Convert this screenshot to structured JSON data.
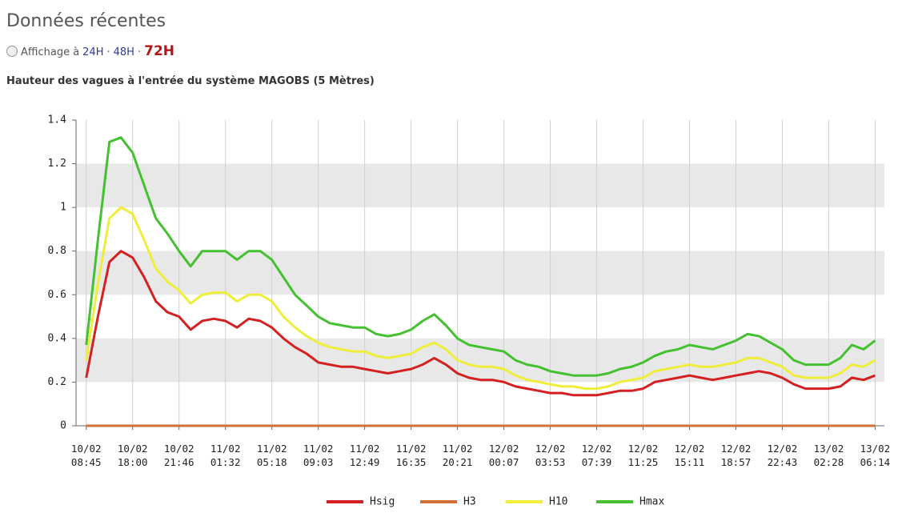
{
  "header": {
    "title": "Données récentes",
    "display_prefix": "Affichage à",
    "separator": "·",
    "options": [
      "24H",
      "48H",
      "72H"
    ]
  },
  "chart_data": {
    "type": "line",
    "title": "Hauteur des vagues à l'entrée du système MAGOBS (5 Mètres)",
    "x": [
      0,
      0.25,
      0.5,
      0.75,
      1,
      1.25,
      1.5,
      1.75,
      2,
      2.25,
      2.5,
      2.75,
      3,
      3.25,
      3.5,
      3.75,
      4,
      4.25,
      4.5,
      4.75,
      5,
      5.25,
      5.5,
      5.75,
      6,
      6.25,
      6.5,
      6.75,
      7,
      7.25,
      7.5,
      7.75,
      8,
      8.25,
      8.5,
      8.75,
      9,
      9.25,
      9.5,
      9.75,
      10,
      10.25,
      10.5,
      10.75,
      11,
      11.25,
      11.5,
      11.75,
      12,
      12.25,
      12.5,
      12.75,
      13,
      13.25,
      13.5,
      13.75,
      14,
      14.25,
      14.5,
      14.75,
      15,
      15.25,
      15.5,
      15.75,
      16,
      16.25,
      16.5,
      16.75,
      17
    ],
    "xlim": [
      -0.22,
      17.2
    ],
    "xticks": [
      {
        "value": 0,
        "label": "10/02 08:45"
      },
      {
        "value": 1,
        "label": "10/02 18:00"
      },
      {
        "value": 2,
        "label": "10/02 21:46"
      },
      {
        "value": 3,
        "label": "11/02 01:32"
      },
      {
        "value": 4,
        "label": "11/02 05:18"
      },
      {
        "value": 5,
        "label": "11/02 09:03"
      },
      {
        "value": 6,
        "label": "11/02 12:49"
      },
      {
        "value": 7,
        "label": "11/02 16:35"
      },
      {
        "value": 8,
        "label": "11/02 20:21"
      },
      {
        "value": 9,
        "label": "12/02 00:07"
      },
      {
        "value": 10,
        "label": "12/02 03:53"
      },
      {
        "value": 11,
        "label": "12/02 07:39"
      },
      {
        "value": 12,
        "label": "12/02 11:25"
      },
      {
        "value": 13,
        "label": "12/02 15:11"
      },
      {
        "value": 14,
        "label": "12/02 18:57"
      },
      {
        "value": 15,
        "label": "12/02 22:43"
      },
      {
        "value": 16,
        "label": "13/02 02:28"
      },
      {
        "value": 17,
        "label": "13/02 06:14"
      }
    ],
    "ylim": [
      0,
      1.4
    ],
    "yticks": [
      0,
      0.2,
      0.4,
      0.6,
      0.8,
      1,
      1.2,
      1.4
    ],
    "grid": true,
    "alternate_bands": true,
    "series": [
      {
        "name": "Hsig",
        "color": "#d42020",
        "values": [
          0.22,
          0.5,
          0.75,
          0.8,
          0.77,
          0.68,
          0.57,
          0.52,
          0.5,
          0.44,
          0.48,
          0.49,
          0.48,
          0.45,
          0.49,
          0.48,
          0.45,
          0.4,
          0.36,
          0.33,
          0.29,
          0.28,
          0.27,
          0.27,
          0.26,
          0.25,
          0.24,
          0.25,
          0.26,
          0.28,
          0.31,
          0.28,
          0.24,
          0.22,
          0.21,
          0.21,
          0.2,
          0.18,
          0.17,
          0.16,
          0.15,
          0.15,
          0.14,
          0.14,
          0.14,
          0.15,
          0.16,
          0.16,
          0.17,
          0.2,
          0.21,
          0.22,
          0.23,
          0.22,
          0.21,
          0.22,
          0.23,
          0.24,
          0.25,
          0.24,
          0.22,
          0.19,
          0.17,
          0.17,
          0.17,
          0.18,
          0.22,
          0.21,
          0.23
        ]
      },
      {
        "name": "H3",
        "color": "#d2703a",
        "values": [
          0,
          0,
          0,
          0,
          0,
          0,
          0,
          0,
          0,
          0,
          0,
          0,
          0,
          0,
          0,
          0,
          0,
          0,
          0,
          0,
          0,
          0,
          0,
          0,
          0,
          0,
          0,
          0,
          0,
          0,
          0,
          0,
          0,
          0,
          0,
          0,
          0,
          0,
          0,
          0,
          0,
          0,
          0,
          0,
          0,
          0,
          0,
          0,
          0,
          0,
          0,
          0,
          0,
          0,
          0,
          0,
          0,
          0,
          0,
          0,
          0,
          0,
          0,
          0,
          0,
          0,
          0,
          0,
          0
        ]
      },
      {
        "name": "H10",
        "color": "#eeee3a",
        "values": [
          0.3,
          0.65,
          0.95,
          1.0,
          0.97,
          0.85,
          0.72,
          0.66,
          0.62,
          0.56,
          0.6,
          0.61,
          0.61,
          0.57,
          0.6,
          0.6,
          0.57,
          0.5,
          0.45,
          0.41,
          0.38,
          0.36,
          0.35,
          0.34,
          0.34,
          0.32,
          0.31,
          0.32,
          0.33,
          0.36,
          0.38,
          0.35,
          0.3,
          0.28,
          0.27,
          0.27,
          0.26,
          0.23,
          0.21,
          0.2,
          0.19,
          0.18,
          0.18,
          0.17,
          0.17,
          0.18,
          0.2,
          0.21,
          0.22,
          0.25,
          0.26,
          0.27,
          0.28,
          0.27,
          0.27,
          0.28,
          0.29,
          0.31,
          0.31,
          0.29,
          0.27,
          0.23,
          0.22,
          0.22,
          0.22,
          0.24,
          0.28,
          0.27,
          0.3
        ]
      },
      {
        "name": "Hmax",
        "color": "#44c030",
        "values": [
          0.37,
          0.85,
          1.3,
          1.32,
          1.25,
          1.1,
          0.95,
          0.88,
          0.8,
          0.73,
          0.8,
          0.8,
          0.8,
          0.76,
          0.8,
          0.8,
          0.76,
          0.68,
          0.6,
          0.55,
          0.5,
          0.47,
          0.46,
          0.45,
          0.45,
          0.42,
          0.41,
          0.42,
          0.44,
          0.48,
          0.51,
          0.46,
          0.4,
          0.37,
          0.36,
          0.35,
          0.34,
          0.3,
          0.28,
          0.27,
          0.25,
          0.24,
          0.23,
          0.23,
          0.23,
          0.24,
          0.26,
          0.27,
          0.29,
          0.32,
          0.34,
          0.35,
          0.37,
          0.36,
          0.35,
          0.37,
          0.39,
          0.42,
          0.41,
          0.38,
          0.35,
          0.3,
          0.28,
          0.28,
          0.28,
          0.31,
          0.37,
          0.35,
          0.39
        ]
      }
    ]
  }
}
